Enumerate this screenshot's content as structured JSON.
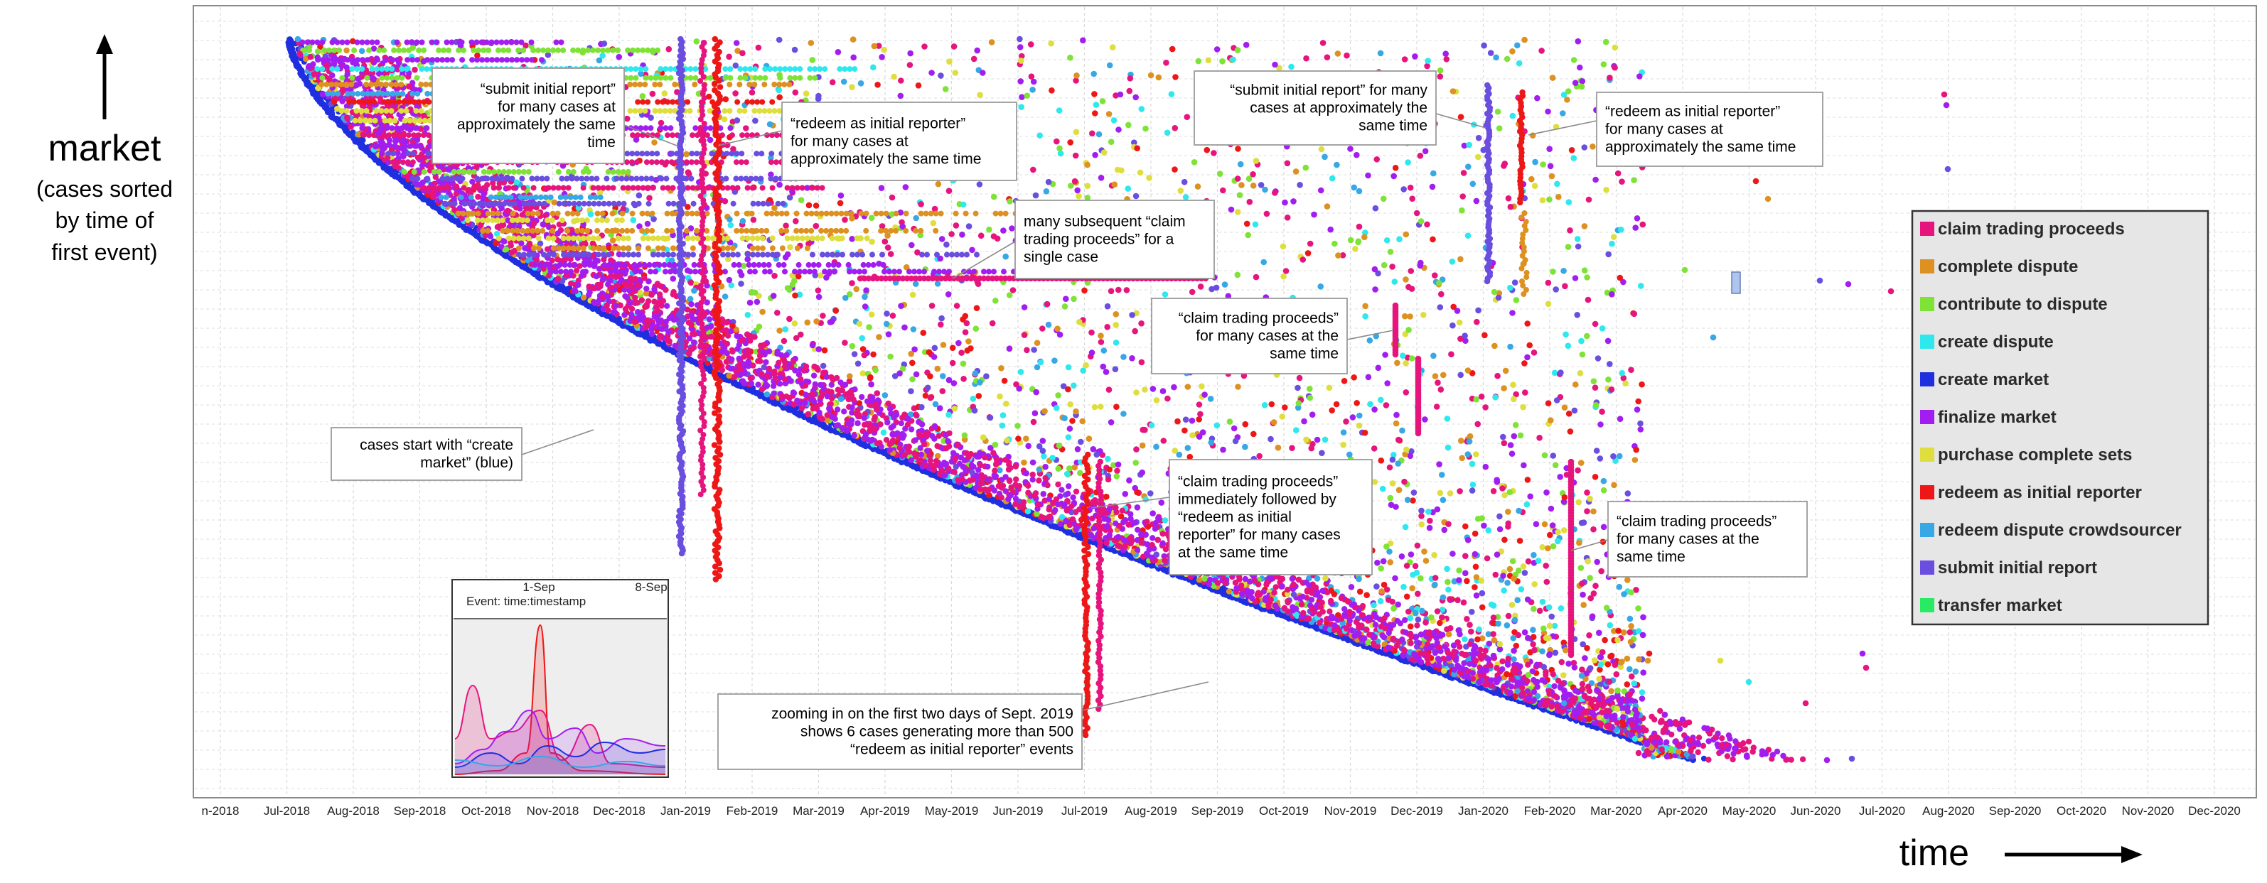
{
  "y_axis_title": "market",
  "y_axis_subtitle": [
    "(cases sorted",
    "by time of",
    "first event)"
  ],
  "x_axis_title": "time",
  "colors": {
    "claim trading proceeds": "#e6157e",
    "complete dispute": "#dd9120",
    "contribute to dispute": "#7ee336",
    "create dispute": "#2ee8ee",
    "create market": "#1f2fe0",
    "finalize market": "#a21ef0",
    "purchase complete sets": "#dede3e",
    "redeem as initial reporter": "#ee1717",
    "redeem dispute crowdsourcer": "#38a7e6",
    "submit initial report": "#6a4ee0",
    "transfer market": "#28ea63"
  },
  "chart_data": {
    "type": "scatter",
    "xlabel": "time",
    "ylabel": "market",
    "x_ticks": [
      "n-2018",
      "Jul-2018",
      "Aug-2018",
      "Sep-2018",
      "Oct-2018",
      "Nov-2018",
      "Dec-2018",
      "Jan-2019",
      "Feb-2019",
      "Mar-2019",
      "Apr-2019",
      "May-2019",
      "Jun-2019",
      "Jul-2019",
      "Aug-2019",
      "Sep-2019",
      "Oct-2019",
      "Nov-2019",
      "Dec-2019",
      "Jan-2020",
      "Feb-2020",
      "Mar-2020",
      "Apr-2020",
      "May-2020",
      "Jun-2020",
      "Jul-2020",
      "Aug-2020",
      "Sep-2020",
      "Oct-2020",
      "Nov-2020",
      "Dec-2020"
    ],
    "grid": true,
    "legend_placement": "right",
    "legend": [
      "claim trading proceeds",
      "complete dispute",
      "contribute to dispute",
      "create dispute",
      "create market",
      "finalize market",
      "purchase complete sets",
      "redeem as initial reporter",
      "redeem dispute crowdsourcer",
      "submit initial report",
      "transfer market"
    ],
    "annotations": [
      {
        "id": "submit-initial-report-2019",
        "lines": [
          "“submit initial report”",
          "for many cases at",
          "approximately the same",
          "time"
        ]
      },
      {
        "id": "redeem-initial-reporter-2019",
        "lines": [
          "“redeem as initial reporter”",
          "for many cases at",
          "approximately the same time"
        ]
      },
      {
        "id": "many-subsequent-claims",
        "lines": [
          "many subsequent “claim",
          "trading proceeds” for a",
          "single case"
        ]
      },
      {
        "id": "submit-initial-report-2020",
        "lines": [
          "“submit initial report” for many",
          "cases at approximately the",
          "same time"
        ]
      },
      {
        "id": "redeem-initial-reporter-2020",
        "lines": [
          "“redeem as initial reporter”",
          "for many cases at",
          "approximately the same time"
        ]
      },
      {
        "id": "claim-trading-nov2019",
        "lines": [
          "“claim trading proceeds”",
          "for many cases at the",
          "same time"
        ]
      },
      {
        "id": "cases-start",
        "lines": [
          "cases start with “create",
          "market” (blue)"
        ]
      },
      {
        "id": "claim-then-redeem",
        "lines": [
          "“claim trading proceeds”",
          "immediately followed by",
          "“redeem as initial",
          "reporter” for many cases",
          "at the same time"
        ]
      },
      {
        "id": "claim-trading-feb2020",
        "lines": [
          "“claim trading proceeds”",
          "for many cases at the",
          "same time"
        ]
      },
      {
        "id": "zoom-sept-2019",
        "lines": [
          "zooming in on the first two days of Sept. 2019",
          "shows 6 cases generating more than 500",
          "“redeem as initial reporter” events"
        ]
      }
    ],
    "inset": {
      "ticks": [
        "1-Sep",
        "8-Sep"
      ],
      "label": "Event: time:timestamp"
    }
  }
}
